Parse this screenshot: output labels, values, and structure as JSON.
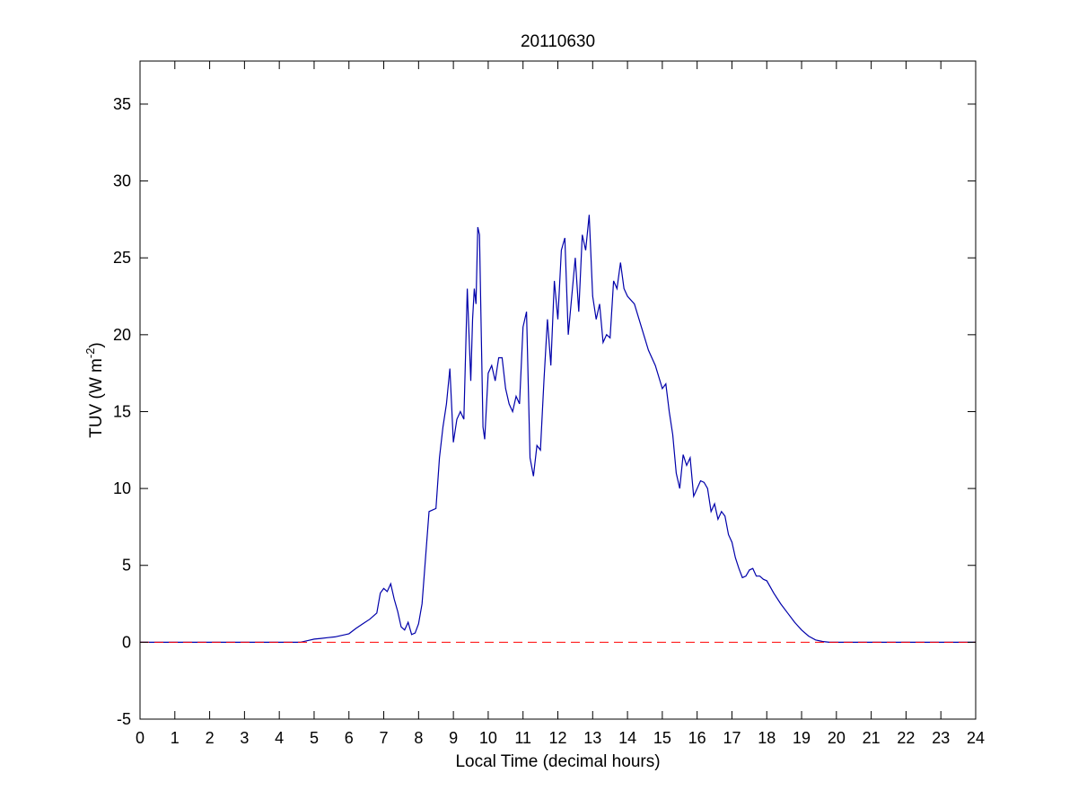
{
  "chart_data": {
    "type": "line",
    "title": "20110630",
    "xlabel": "Local Time (decimal hours)",
    "ylabel_main": "TUV (W m",
    "ylabel_sup": "-2",
    "ylabel_close": ")",
    "xlim": [
      0,
      24
    ],
    "ylim": [
      -5,
      37.8
    ],
    "xticks": [
      0,
      1,
      2,
      3,
      4,
      5,
      6,
      7,
      8,
      9,
      10,
      11,
      12,
      13,
      14,
      15,
      16,
      17,
      18,
      19,
      20,
      21,
      22,
      23,
      24
    ],
    "yticks": [
      -5,
      0,
      5,
      10,
      15,
      20,
      25,
      30,
      35
    ],
    "grid": false,
    "series": [
      {
        "color": "#0000aa",
        "x": [
          0,
          4.6,
          4.8,
          5.0,
          5.2,
          5.4,
          5.6,
          5.8,
          6.0,
          6.2,
          6.4,
          6.6,
          6.8,
          6.9,
          7.0,
          7.1,
          7.2,
          7.3,
          7.4,
          7.5,
          7.6,
          7.7,
          7.8,
          7.9,
          8.0,
          8.1,
          8.2,
          8.3,
          8.4,
          8.5,
          8.6,
          8.7,
          8.8,
          8.9,
          9.0,
          9.1,
          9.2,
          9.3,
          9.4,
          9.5,
          9.55,
          9.6,
          9.65,
          9.7,
          9.75,
          9.8,
          9.85,
          9.9,
          10.0,
          10.1,
          10.2,
          10.3,
          10.4,
          10.5,
          10.6,
          10.7,
          10.8,
          10.9,
          11.0,
          11.1,
          11.2,
          11.3,
          11.4,
          11.5,
          11.6,
          11.7,
          11.8,
          11.9,
          12.0,
          12.1,
          12.2,
          12.3,
          12.4,
          12.5,
          12.6,
          12.7,
          12.8,
          12.9,
          13.0,
          13.1,
          13.2,
          13.3,
          13.4,
          13.5,
          13.6,
          13.7,
          13.8,
          13.9,
          14.0,
          14.2,
          14.4,
          14.6,
          14.8,
          15.0,
          15.1,
          15.2,
          15.3,
          15.4,
          15.5,
          15.6,
          15.7,
          15.8,
          15.9,
          16.0,
          16.1,
          16.2,
          16.3,
          16.4,
          16.5,
          16.6,
          16.7,
          16.8,
          16.9,
          17.0,
          17.1,
          17.2,
          17.3,
          17.4,
          17.5,
          17.6,
          17.7,
          17.8,
          17.9,
          18.0,
          18.2,
          18.4,
          18.6,
          18.8,
          19.0,
          19.2,
          19.4,
          19.6,
          19.8,
          20.0,
          24
        ],
        "values": [
          0,
          0,
          0.1,
          0.2,
          0.25,
          0.3,
          0.35,
          0.45,
          0.55,
          0.9,
          1.2,
          1.5,
          1.9,
          3.2,
          3.5,
          3.3,
          3.8,
          2.8,
          2.0,
          1.0,
          0.8,
          1.3,
          0.5,
          0.6,
          1.2,
          2.5,
          5.5,
          8.5,
          8.6,
          8.7,
          12.0,
          14.0,
          15.5,
          17.8,
          13.0,
          14.5,
          15.0,
          14.5,
          23.0,
          17.0,
          21.0,
          23.0,
          22.0,
          27.0,
          26.5,
          20.0,
          14.0,
          13.2,
          17.5,
          18.0,
          17.0,
          18.5,
          18.5,
          16.5,
          15.5,
          15.0,
          16.0,
          15.5,
          20.5,
          21.5,
          12.0,
          10.8,
          12.8,
          12.5,
          17.0,
          21.0,
          18.0,
          23.5,
          21.0,
          25.5,
          26.3,
          20.0,
          22.5,
          25.0,
          21.5,
          26.5,
          25.5,
          27.8,
          22.5,
          21.0,
          22.0,
          19.5,
          20.0,
          19.8,
          23.5,
          23.0,
          24.7,
          23.0,
          22.5,
          22.0,
          20.5,
          19.0,
          18.0,
          16.5,
          16.8,
          15.0,
          13.5,
          11.0,
          10.0,
          12.2,
          11.5,
          12.0,
          9.5,
          10.0,
          10.5,
          10.4,
          10.0,
          8.5,
          9.0,
          8.0,
          8.5,
          8.2,
          7.0,
          6.5,
          5.5,
          4.8,
          4.2,
          4.3,
          4.7,
          4.8,
          4.3,
          4.3,
          4.1,
          4.0,
          3.2,
          2.5,
          1.9,
          1.3,
          0.8,
          0.4,
          0.15,
          0.05,
          0,
          0,
          0
        ]
      },
      {
        "color": "#ff0000",
        "style": "dashed",
        "x": [
          0,
          24
        ],
        "values": [
          0,
          0
        ]
      }
    ]
  }
}
